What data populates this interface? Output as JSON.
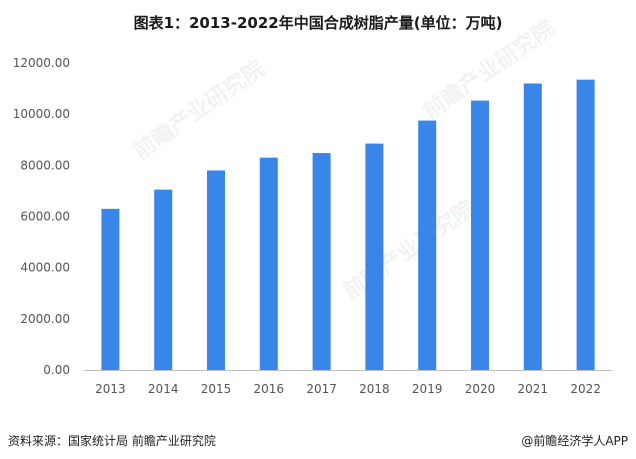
{
  "title": "图表1：2013-2022年中国合成树脂产量(单位：万吨)",
  "footer": {
    "source": "资料来源：国家统计局 前瞻产业研究院",
    "credit": "@前瞻经济学人APP"
  },
  "watermark": "前瞻产业研究院",
  "colors": {
    "bar": "#3a86e8",
    "axis": "#bfbfbf",
    "text": "#555555"
  },
  "chart_data": {
    "type": "bar",
    "title": "图表1：2013-2022年中国合成树脂产量(单位：万吨)",
    "categories": [
      "2013",
      "2014",
      "2015",
      "2016",
      "2017",
      "2018",
      "2019",
      "2020",
      "2021",
      "2022"
    ],
    "values": [
      6300,
      7050,
      7800,
      8300,
      8480,
      8850,
      9750,
      10530,
      11200,
      11350
    ],
    "ylim": [
      0,
      12000
    ],
    "yticks": [
      "0.00",
      "2000.00",
      "4000.00",
      "6000.00",
      "8000.00",
      "10000.00",
      "12000.00"
    ],
    "ytick_values": [
      0,
      2000,
      4000,
      6000,
      8000,
      10000,
      12000
    ],
    "grid": false,
    "legend": "none"
  }
}
